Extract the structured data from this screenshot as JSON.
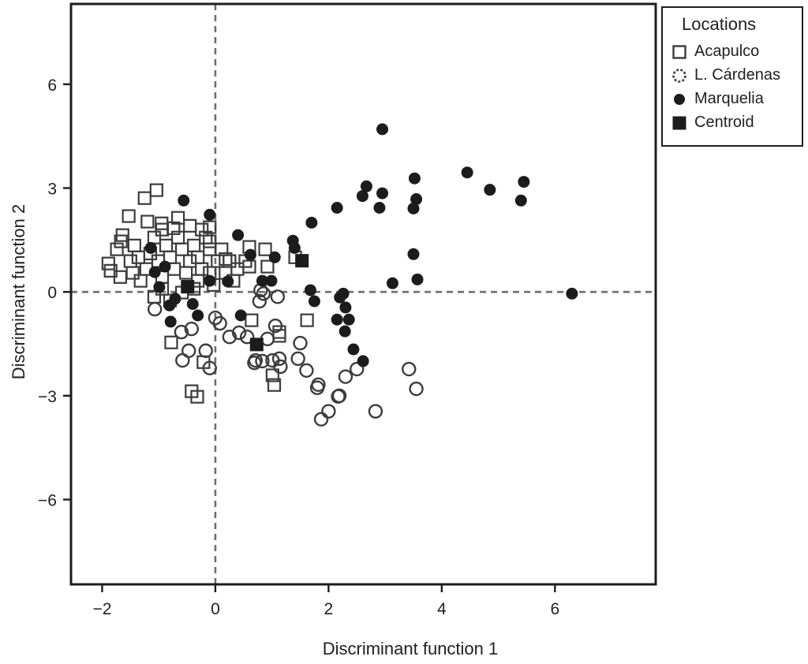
{
  "figure_title": "",
  "axes": {
    "xlabel": "Discriminant function 1",
    "ylabel": "Discriminant function 2",
    "x_ticks": [
      {
        "v": -2,
        "label": "−2"
      },
      {
        "v": 0,
        "label": "0"
      },
      {
        "v": 2,
        "label": "2"
      },
      {
        "v": 4,
        "label": "4"
      },
      {
        "v": 6,
        "label": "6"
      }
    ],
    "y_ticks": [
      {
        "v": 6,
        "label": "6"
      },
      {
        "v": 3,
        "label": "3"
      },
      {
        "v": 0,
        "label": "0"
      },
      {
        "v": -3,
        "label": "−3"
      },
      {
        "v": -6,
        "label": "−6"
      }
    ]
  },
  "legend": {
    "title": "Locations",
    "items": [
      {
        "label": "Acapulco",
        "marker": "open-square"
      },
      {
        "label": "L. Cárdenas",
        "marker": "open-circle"
      },
      {
        "label": "Marquelia",
        "marker": "filled-circle"
      },
      {
        "label": "Centroid",
        "marker": "filled-square"
      }
    ]
  },
  "colors": {
    "ink": "#1c1c1c",
    "marker_stroke": "#3c3c3c",
    "reference_line": "#6e6e6e",
    "background": "#ffffff"
  },
  "chart_data": {
    "type": "scatter",
    "title": "",
    "xlabel": "Discriminant function 1",
    "ylabel": "Discriminant function 2",
    "xlim": [
      -2.55,
      7.78
    ],
    "ylim": [
      -8.45,
      8.32
    ],
    "grid": false,
    "reference_lines": {
      "x": 0,
      "y": 0,
      "style": "dashed"
    },
    "legend_position": "outside-top-right",
    "series": [
      {
        "name": "Acapulco",
        "marker": "open-square",
        "points": [
          [
            -1.89,
            0.82
          ],
          [
            -1.85,
            0.61
          ],
          [
            -1.74,
            1.23
          ],
          [
            -1.67,
            1.46
          ],
          [
            -1.64,
            1.64
          ],
          [
            -1.68,
            0.43
          ],
          [
            -1.53,
            2.19
          ],
          [
            -1.25,
            2.71
          ],
          [
            -1.04,
            2.94
          ],
          [
            -1.5,
            0.89
          ],
          [
            -1.43,
            1.34
          ],
          [
            -1.36,
            1.0
          ],
          [
            -1.22,
            0.66
          ],
          [
            -1.46,
            0.55
          ],
          [
            -1.32,
            0.32
          ],
          [
            -1.2,
            2.03
          ],
          [
            -1.15,
            1.11
          ],
          [
            -1.08,
            1.57
          ],
          [
            -0.95,
            1.98
          ],
          [
            -0.94,
            1.8
          ],
          [
            -0.87,
            1.34
          ],
          [
            -1.01,
            0.89
          ],
          [
            -0.8,
            1.0
          ],
          [
            -0.74,
            1.84
          ],
          [
            -0.73,
            0.66
          ],
          [
            -0.94,
            0.43
          ],
          [
            -0.66,
            1.57
          ],
          [
            -0.66,
            2.14
          ],
          [
            -0.59,
            1.23
          ],
          [
            -0.45,
            0.89
          ],
          [
            -0.52,
            0.55
          ],
          [
            -0.45,
            1.91
          ],
          [
            -0.38,
            1.34
          ],
          [
            -0.31,
            1.0
          ],
          [
            -0.24,
            0.66
          ],
          [
            -0.24,
            1.8
          ],
          [
            -0.17,
            1.57
          ],
          [
            -0.1,
            1.23
          ],
          [
            -0.1,
            1.87
          ],
          [
            -0.1,
            1.46
          ],
          [
            -0.31,
            0.32
          ],
          [
            -0.1,
            0.55
          ],
          [
            0.04,
            0.89
          ],
          [
            0.11,
            1.23
          ],
          [
            -0.03,
            0.2
          ],
          [
            0.18,
            0.55
          ],
          [
            0.25,
            0.89
          ],
          [
            0.39,
            0.66
          ],
          [
            0.32,
            0.32
          ],
          [
            0.53,
            0.89
          ],
          [
            0.6,
            1.3
          ],
          [
            0.88,
            1.23
          ],
          [
            0.92,
            0.73
          ],
          [
            0.6,
            0.73
          ],
          [
            0.18,
            0.95
          ],
          [
            1.41,
            1.0
          ],
          [
            -0.94,
            0.09
          ],
          [
            -1.08,
            -0.14
          ],
          [
            -0.8,
            -0.25
          ],
          [
            -0.59,
            -0.02
          ],
          [
            -0.38,
            0.09
          ],
          [
            0.64,
            -0.82
          ],
          [
            1.62,
            -0.82
          ],
          [
            1.13,
            -1.16
          ],
          [
            1.13,
            -1.27
          ],
          [
            -0.78,
            -1.46
          ],
          [
            -0.21,
            -2.03
          ],
          [
            1.01,
            -2.41
          ],
          [
            1.04,
            -2.69
          ],
          [
            -0.42,
            -2.87
          ],
          [
            -0.32,
            -3.03
          ]
        ]
      },
      {
        "name": "L. Cárdenas",
        "marker": "open-circle",
        "points": [
          [
            0.8,
            0.05
          ],
          [
            0.85,
            -0.05
          ],
          [
            1.1,
            -0.14
          ],
          [
            0.78,
            -0.27
          ],
          [
            -1.07,
            -0.5
          ],
          [
            0.0,
            -0.75
          ],
          [
            0.08,
            -0.91
          ],
          [
            -0.42,
            -1.07
          ],
          [
            1.06,
            -0.98
          ],
          [
            0.25,
            -1.3
          ],
          [
            0.42,
            -1.18
          ],
          [
            0.56,
            -1.3
          ],
          [
            0.92,
            -1.36
          ],
          [
            -0.6,
            -1.16
          ],
          [
            -0.47,
            -1.7
          ],
          [
            -0.17,
            -1.7
          ],
          [
            -0.58,
            -1.98
          ],
          [
            -0.1,
            -2.2
          ],
          [
            0.69,
            -2.05
          ],
          [
            0.71,
            -1.98
          ],
          [
            0.83,
            -2.0
          ],
          [
            1.01,
            -1.98
          ],
          [
            1.13,
            -1.93
          ],
          [
            1.15,
            -2.16
          ],
          [
            1.5,
            -1.48
          ],
          [
            1.46,
            -1.93
          ],
          [
            1.61,
            -2.27
          ],
          [
            1.82,
            -2.68
          ],
          [
            2.3,
            -2.45
          ],
          [
            2.17,
            -3.02
          ],
          [
            2.5,
            -2.23
          ],
          [
            1.8,
            -2.77
          ],
          [
            2.19,
            -3.0
          ],
          [
            2.0,
            -3.45
          ],
          [
            1.87,
            -3.68
          ],
          [
            2.83,
            -3.45
          ],
          [
            3.42,
            -2.23
          ],
          [
            3.55,
            -2.8
          ]
        ]
      },
      {
        "name": "Marquelia",
        "marker": "filled-circle",
        "points": [
          [
            2.95,
            4.7
          ],
          [
            4.45,
            3.45
          ],
          [
            3.52,
            3.28
          ],
          [
            5.45,
            3.18
          ],
          [
            2.67,
            3.05
          ],
          [
            4.85,
            2.95
          ],
          [
            2.95,
            2.85
          ],
          [
            2.6,
            2.77
          ],
          [
            3.55,
            2.68
          ],
          [
            5.4,
            2.64
          ],
          [
            2.15,
            2.43
          ],
          [
            2.9,
            2.43
          ],
          [
            3.5,
            2.41
          ],
          [
            -0.56,
            2.64
          ],
          [
            -0.1,
            2.23
          ],
          [
            1.7,
            2.0
          ],
          [
            0.4,
            1.64
          ],
          [
            1.37,
            1.48
          ],
          [
            1.4,
            1.27
          ],
          [
            -1.14,
            1.27
          ],
          [
            3.5,
            1.09
          ],
          [
            0.62,
            1.07
          ],
          [
            1.05,
            1.0
          ],
          [
            -0.89,
            0.73
          ],
          [
            -1.07,
            0.57
          ],
          [
            3.57,
            0.36
          ],
          [
            3.13,
            0.25
          ],
          [
            -0.1,
            0.32
          ],
          [
            0.22,
            0.3
          ],
          [
            0.83,
            0.32
          ],
          [
            0.99,
            0.32
          ],
          [
            1.68,
            0.05
          ],
          [
            2.26,
            -0.05
          ],
          [
            6.3,
            -0.05
          ],
          [
            -0.99,
            0.14
          ],
          [
            2.2,
            -0.16
          ],
          [
            1.75,
            -0.27
          ],
          [
            -0.71,
            -0.2
          ],
          [
            2.3,
            -0.45
          ],
          [
            -0.81,
            -0.39
          ],
          [
            -0.4,
            -0.35
          ],
          [
            2.15,
            -0.8
          ],
          [
            2.36,
            -0.8
          ],
          [
            -0.31,
            -0.68
          ],
          [
            0.45,
            -0.68
          ],
          [
            -0.79,
            -0.86
          ],
          [
            2.29,
            -1.14
          ],
          [
            2.44,
            -1.66
          ],
          [
            2.61,
            -2.0
          ]
        ]
      },
      {
        "name": "Centroid",
        "marker": "filled-square",
        "points": [
          [
            -0.49,
            0.15
          ],
          [
            0.73,
            -1.52
          ],
          [
            1.53,
            0.9
          ]
        ]
      }
    ]
  }
}
